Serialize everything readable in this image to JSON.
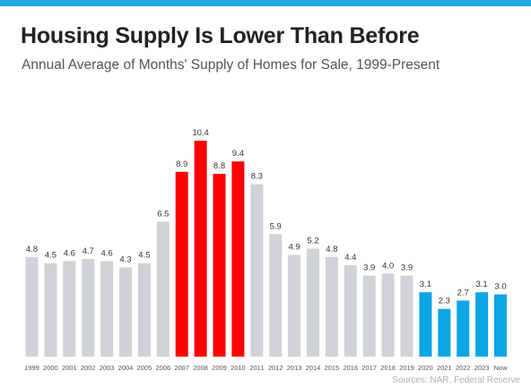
{
  "header": {
    "title": "Housing Supply Is Lower Than Before",
    "subtitle": "Annual Average of Months' Supply of Homes for Sale, 1999-Present"
  },
  "footer": {
    "source": "Sources: NAR, Federal Reserve"
  },
  "colors": {
    "accent_bar": "#1aa8e0",
    "gray": "#d0d3d6",
    "red": "#ff0000",
    "blue": "#0ca5e6",
    "label_text": "#333333",
    "axis_text": "#555555"
  },
  "chart_data": {
    "type": "bar",
    "title": "Housing Supply Is Lower Than Before",
    "subtitle": "Annual Average of Months' Supply of Homes for Sale, 1999-Present",
    "categories": [
      "1999",
      "2000",
      "2001",
      "2002",
      "2003",
      "2004",
      "2005",
      "2006",
      "2007",
      "2008",
      "2009",
      "2010",
      "2011",
      "2012",
      "2013",
      "2014",
      "2015",
      "2016",
      "2017",
      "2018",
      "2019",
      "2020",
      "2021",
      "2022",
      "2023",
      "Now"
    ],
    "values": [
      4.8,
      4.5,
      4.6,
      4.7,
      4.6,
      4.3,
      4.5,
      6.5,
      8.9,
      10.4,
      8.8,
      9.4,
      8.3,
      5.9,
      4.9,
      5.2,
      4.8,
      4.4,
      3.9,
      4.0,
      3.9,
      3.1,
      2.3,
      2.7,
      3.1,
      3.0
    ],
    "value_labels": [
      "4.8",
      "4.5",
      "4.6",
      "4.7",
      "4.6",
      "4.3",
      "4.5",
      "6.5",
      "8.9",
      "10.4",
      "8.8",
      "9.4",
      "8.3",
      "5.9",
      "4.9",
      "5.2",
      "4.8",
      "4.4",
      "3.9",
      "4.0",
      "3.9",
      "3.1",
      "2.3",
      "2.7",
      "3.1",
      "3.0"
    ],
    "bar_colors": [
      "gray",
      "gray",
      "gray",
      "gray",
      "gray",
      "gray",
      "gray",
      "gray",
      "red",
      "red",
      "red",
      "red",
      "gray",
      "gray",
      "gray",
      "gray",
      "gray",
      "gray",
      "gray",
      "gray",
      "gray",
      "blue",
      "blue",
      "blue",
      "blue",
      "blue"
    ],
    "ylim": [
      0,
      10.4
    ],
    "xlabel": "",
    "ylabel": "",
    "grid": false,
    "legend": "none",
    "data_labels": "above bars",
    "source": "Sources: NAR, Federal Reserve"
  }
}
